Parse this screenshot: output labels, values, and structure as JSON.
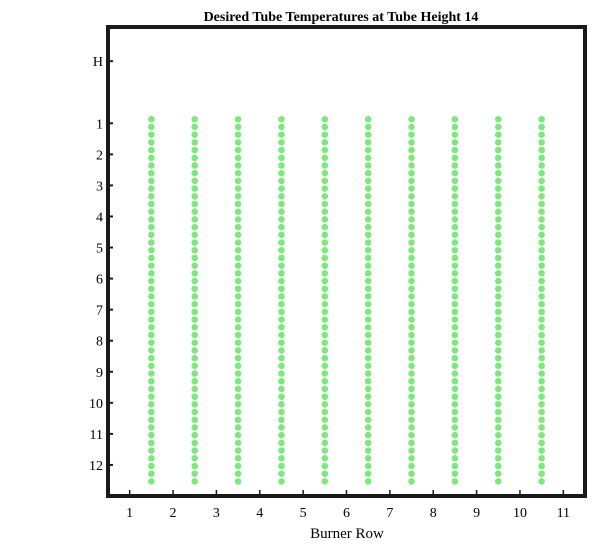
{
  "chart_data": {
    "type": "scatter",
    "title": "Desired Tube Temperatures at Tube Height 14",
    "xlabel": "Burner Row",
    "ylabel": "",
    "xlim": [
      0.5,
      11.5
    ],
    "x_ticks": [
      "1",
      "2",
      "3",
      "4",
      "5",
      "6",
      "7",
      "8",
      "9",
      "10",
      "11"
    ],
    "y_ticks": [
      {
        "label": "H",
        "value": -1
      },
      {
        "label": "1",
        "value": 1
      },
      {
        "label": "2",
        "value": 2
      },
      {
        "label": "3",
        "value": 3
      },
      {
        "label": "4",
        "value": 4
      },
      {
        "label": "5",
        "value": 5
      },
      {
        "label": "6",
        "value": 6
      },
      {
        "label": "7",
        "value": 7
      },
      {
        "label": "8",
        "value": 8
      },
      {
        "label": "9",
        "value": 9
      },
      {
        "label": "10",
        "value": 10
      },
      {
        "label": "11",
        "value": 11
      },
      {
        "label": "12",
        "value": 12
      }
    ],
    "ylim": [
      -2.1,
      13.0
    ],
    "y_reversed": true,
    "grid": false,
    "marker_color": "#7ee87e",
    "columns_x": [
      1.5,
      2.5,
      3.5,
      4.5,
      5.5,
      6.5,
      7.5,
      8.5,
      9.5,
      10.5
    ],
    "y_start": 0.87,
    "y_end": 12.53,
    "points_per_column": 48
  }
}
